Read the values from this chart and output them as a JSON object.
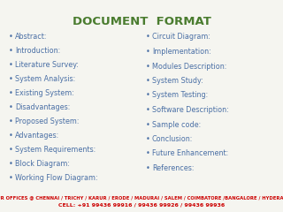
{
  "title": "DOCUMENT  FORMAT",
  "title_color": "#4a7c2f",
  "title_fontsize": 9.5,
  "text_color": "#4a6fa5",
  "bullet_color": "#4a6fa5",
  "left_items": [
    "Abstract:",
    "Introduction:",
    "Literature Survey:",
    "System Analysis:",
    "Existing System:",
    "Disadvantages:",
    "Proposed System:",
    "Advantages:",
    "System Requirements:",
    "Block Diagram:",
    "Working Flow Diagram:"
  ],
  "right_items": [
    "Circuit Diagram:",
    "Implementation:",
    "Modules Description:",
    "System Study:",
    "System Testing:",
    "Software Description:",
    "Sample code:",
    "Conclusion:",
    "Future Enhancement:",
    "References:"
  ],
  "footer_line1": "OUR OFFICES @ CHENNAI / TRICHY / KARUR / ERODE / MADURAI / SALEM / COIMBATORE /BANGALORE / HYDERABD",
  "footer_line2": "CELL: +91 99436 99916 / 99436 99926 / 99436 99936",
  "footer_color": "#cc0000",
  "bg_color": "#f5f5f0",
  "item_fontsize": 5.8,
  "footer_fontsize": 3.8,
  "footer_fontsize2": 4.5
}
